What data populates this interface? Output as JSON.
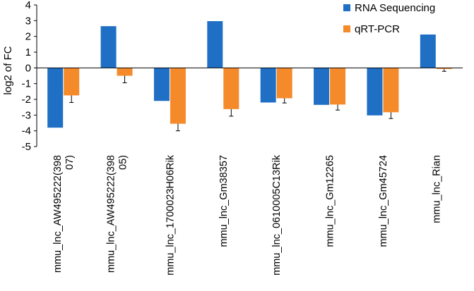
{
  "chart_data": {
    "type": "bar",
    "title": "",
    "xlabel": "",
    "ylabel": "log2 of FC",
    "ylim": [
      -5,
      4
    ],
    "yticks": [
      -5,
      -4,
      -3,
      -2,
      -1,
      0,
      1,
      2,
      3,
      4
    ],
    "grid": false,
    "legend_position": "top-right",
    "categories": [
      [
        "mmu_lnc_AW495222(398",
        "07)"
      ],
      [
        "mmu_lnc_AW495222(398",
        "05)"
      ],
      [
        "mmu_lnc_1700023H06Rik"
      ],
      [
        "mmu_lnc_Gm38357"
      ],
      [
        "mmu_lnc_0610005C13Rik"
      ],
      [
        "mmu_lnc_Gm12265"
      ],
      [
        "mmu_lnc_Gm45724"
      ],
      [
        "mmu_lnc_Rian"
      ]
    ],
    "series": [
      {
        "name": "RNA Sequencing",
        "color": "#1F6FC5",
        "values": [
          -3.8,
          2.65,
          -2.1,
          2.97,
          -2.2,
          -2.35,
          -3.02,
          2.12
        ],
        "errors": null
      },
      {
        "name": "qRT-PCR",
        "color": "#F58A2A",
        "values": [
          -1.75,
          -0.5,
          -3.55,
          -2.62,
          -1.93,
          -2.33,
          -2.82,
          -0.07
        ],
        "errors": [
          0.45,
          0.45,
          0.45,
          0.45,
          0.3,
          0.35,
          0.4,
          0.15
        ]
      }
    ]
  }
}
